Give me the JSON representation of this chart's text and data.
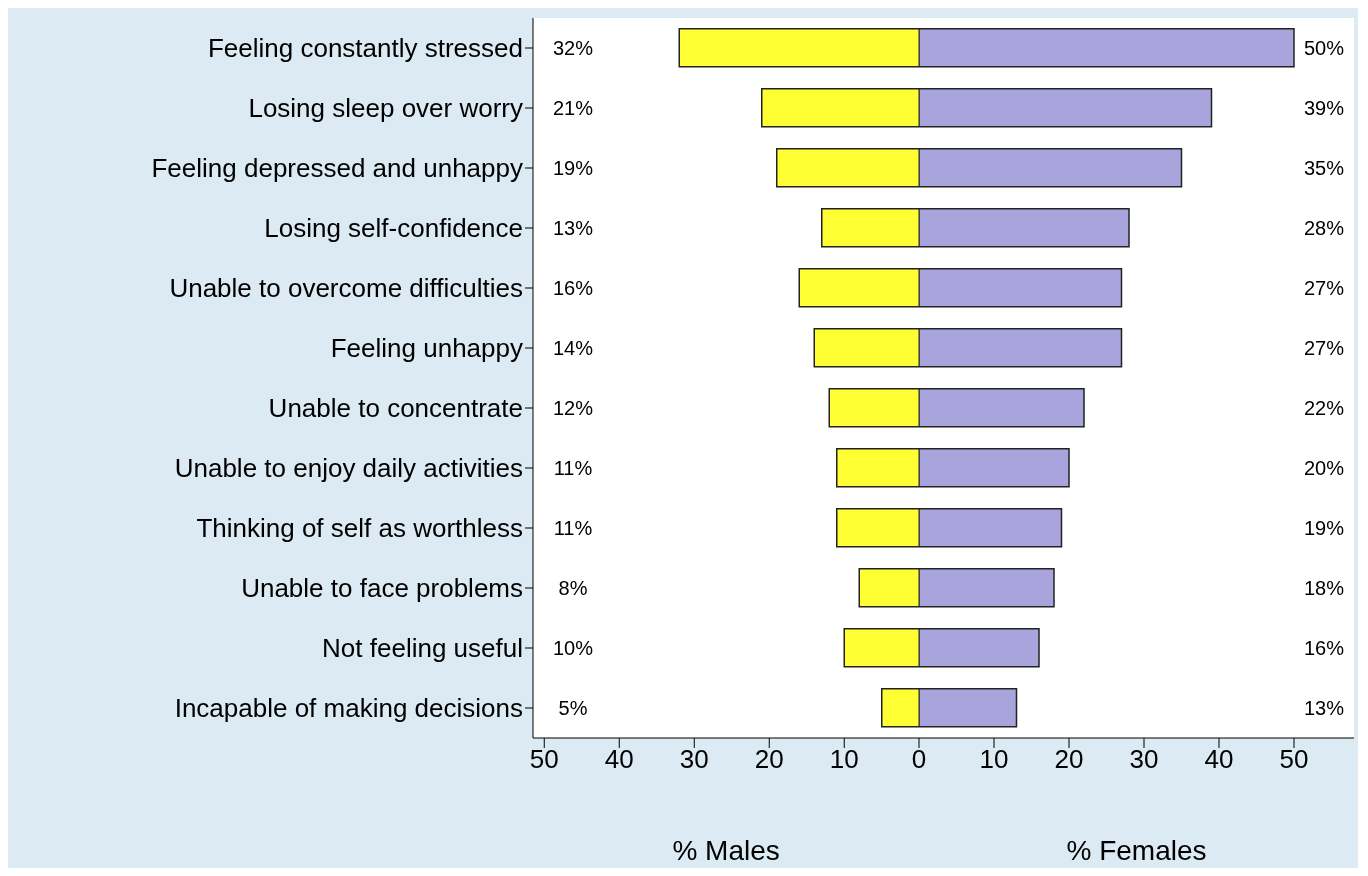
{
  "chart_data": [
    {
      "type": "bar",
      "orientation": "horizontal",
      "categories": [
        "Feeling constantly stressed",
        "Losing sleep over worry",
        "Feeling depressed and unhappy",
        "Losing self-confidence",
        "Unable to overcome difficulties",
        "Feeling unhappy",
        "Unable to concentrate",
        "Unable to enjoy daily activities",
        "Thinking of self as worthless",
        "Unable to face problems",
        "Not feeling useful",
        "Incapable of making decisions"
      ],
      "series": [
        {
          "color": "#ffff33",
          "values": [
            32,
            21,
            19,
            13,
            16,
            14,
            12,
            11,
            11,
            8,
            10,
            5
          ],
          "value_labels": [
            "32%",
            "21%",
            "19%",
            "13%",
            "16%",
            "14%",
            "12%",
            "11%",
            "11%",
            "8%",
            "10%",
            "5%"
          ]
        }
      ],
      "xlim": [
        51.5,
        0
      ],
      "xticks": [
        50,
        40,
        30,
        20,
        10
      ],
      "xlabel": "% Males"
    },
    {
      "type": "bar",
      "orientation": "horizontal",
      "categories": [
        null,
        null,
        null,
        null,
        null,
        null,
        null,
        null,
        null,
        null,
        null,
        null
      ],
      "series": [
        {
          "color": "#a9a4dc",
          "values": [
            50,
            39,
            35,
            28,
            27,
            27,
            22,
            20,
            19,
            18,
            16,
            13
          ],
          "value_labels": [
            "50%",
            "39%",
            "35%",
            "28%",
            "27%",
            "27%",
            "22%",
            "20%",
            "19%",
            "18%",
            "16%",
            "13%"
          ]
        }
      ],
      "xlim": [
        0,
        58
      ],
      "xticks": [
        0,
        10,
        20,
        30,
        40,
        50
      ],
      "xlabel": "% Females",
      "tick_labels": "x"
    }
  ]
}
